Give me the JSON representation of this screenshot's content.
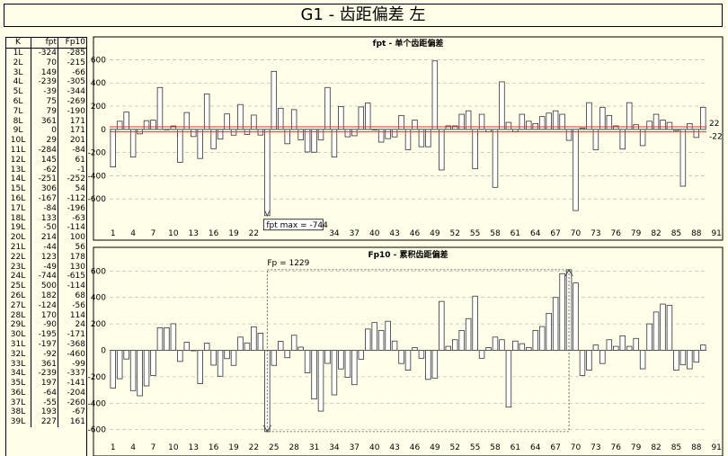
{
  "title": "G1 - 齿距偏差 左",
  "table": {
    "headers": [
      "K",
      "fpt",
      "Fp10"
    ],
    "rows": [
      [
        "1L",
        "-324",
        "-285"
      ],
      [
        "2L",
        "70",
        "-215"
      ],
      [
        "3L",
        "149",
        "-66"
      ],
      [
        "4L",
        "-239",
        "-305"
      ],
      [
        "5L",
        "-39",
        "-344"
      ],
      [
        "6L",
        "75",
        "-269"
      ],
      [
        "7L",
        "79",
        "-190"
      ],
      [
        "8L",
        "361",
        "171"
      ],
      [
        "9L",
        "0",
        "171"
      ],
      [
        "10L",
        "29",
        "201"
      ],
      [
        "11L",
        "-284",
        "-84"
      ],
      [
        "12L",
        "145",
        "61"
      ],
      [
        "13L",
        "-62",
        "-1"
      ],
      [
        "14L",
        "-251",
        "-252"
      ],
      [
        "15L",
        "306",
        "54"
      ],
      [
        "16L",
        "-167",
        "-112"
      ],
      [
        "17L",
        "-84",
        "-196"
      ],
      [
        "18L",
        "133",
        "-63"
      ],
      [
        "19L",
        "-50",
        "-114"
      ],
      [
        "20L",
        "214",
        "100"
      ],
      [
        "21L",
        "-44",
        "56"
      ],
      [
        "22L",
        "123",
        "178"
      ],
      [
        "23L",
        "-49",
        "130"
      ],
      [
        "24L",
        "-744",
        "-615"
      ],
      [
        "25L",
        "500",
        "-114"
      ],
      [
        "26L",
        "182",
        "68"
      ],
      [
        "27L",
        "-124",
        "-56"
      ],
      [
        "28L",
        "170",
        "114"
      ],
      [
        "29L",
        "-90",
        "24"
      ],
      [
        "30L",
        "-195",
        "-171"
      ],
      [
        "31L",
        "-197",
        "-368"
      ],
      [
        "32L",
        "-92",
        "-460"
      ],
      [
        "33L",
        "361",
        "-99"
      ],
      [
        "34L",
        "-239",
        "-337"
      ],
      [
        "35L",
        "197",
        "-141"
      ],
      [
        "36L",
        "-64",
        "-204"
      ],
      [
        "37L",
        "-55",
        "-260"
      ],
      [
        "38L",
        "193",
        "-67"
      ],
      [
        "39L",
        "227",
        "161"
      ]
    ]
  },
  "chart_data": [
    {
      "type": "bar",
      "title": "fpt - 单个齿距偏差",
      "ylim": [
        -800,
        650
      ],
      "yticks": [
        600,
        400,
        200,
        0,
        -200,
        -400,
        -600
      ],
      "xticks": [
        "1",
        "4",
        "7",
        "10",
        "13",
        "16",
        "19",
        "22",
        "",
        "",
        "",
        "34",
        "37",
        "40",
        "43",
        "46",
        "49",
        "52",
        "55",
        "58",
        "61",
        "64",
        "67",
        "70",
        "73",
        "76",
        "79",
        "82",
        "85",
        "88",
        "91"
      ],
      "tolerance_lines": [
        22,
        -22
      ],
      "tolerance_labels": [
        "22",
        "-22"
      ],
      "annotation": "fpt max = -744",
      "values": [
        -324,
        70,
        149,
        -239,
        -39,
        75,
        79,
        361,
        0,
        29,
        -284,
        145,
        -62,
        -251,
        306,
        -167,
        -84,
        133,
        -50,
        214,
        -44,
        123,
        -49,
        -744,
        500,
        182,
        -124,
        170,
        -90,
        -195,
        -197,
        -92,
        361,
        -239,
        197,
        -64,
        -55,
        193,
        227,
        -5,
        -110,
        -80,
        -65,
        120,
        -175,
        80,
        -150,
        -150,
        590,
        -350,
        30,
        30,
        130,
        160,
        -340,
        130,
        -20,
        -500,
        410,
        60,
        -20,
        130,
        70,
        50,
        110,
        140,
        160,
        130,
        -95,
        -700,
        10,
        230,
        -175,
        190,
        120,
        30,
        -170,
        230,
        40,
        -140,
        70,
        130,
        80,
        60,
        -10,
        -490,
        50,
        -70,
        190
      ],
      "grid": true
    },
    {
      "type": "bar",
      "title": "Fp10 - 累积齿距偏差",
      "ylim": [
        -650,
        650
      ],
      "yticks": [
        600,
        400,
        200,
        0,
        -200,
        -400,
        -600
      ],
      "xticks": [
        "1",
        "4",
        "7",
        "10",
        "13",
        "16",
        "19",
        "22",
        "25",
        "28",
        "31",
        "34",
        "37",
        "40",
        "43",
        "46",
        "49",
        "52",
        "55",
        "58",
        "61",
        "64",
        "67",
        "70",
        "73",
        "76",
        "79",
        "82",
        "85",
        "88",
        "91"
      ],
      "annotation": "Fp = 1229",
      "values": [
        -285,
        -215,
        -66,
        -305,
        -344,
        -269,
        -190,
        171,
        171,
        201,
        -84,
        61,
        -1,
        -252,
        54,
        -112,
        -196,
        -63,
        -114,
        100,
        56,
        178,
        130,
        -615,
        -114,
        68,
        -56,
        114,
        24,
        -171,
        -368,
        -460,
        -99,
        -337,
        -141,
        -204,
        -260,
        -67,
        161,
        210,
        150,
        220,
        70,
        -100,
        -150,
        20,
        -60,
        -220,
        -210,
        370,
        30,
        80,
        150,
        240,
        410,
        -60,
        20,
        100,
        80,
        -430,
        70,
        50,
        20,
        150,
        180,
        280,
        400,
        580,
        610,
        510,
        -190,
        -150,
        40,
        -100,
        80,
        30,
        110,
        30,
        90,
        -140,
        200,
        290,
        350,
        340,
        -150,
        -110,
        -140,
        -90,
        40
      ],
      "grid": true
    }
  ]
}
